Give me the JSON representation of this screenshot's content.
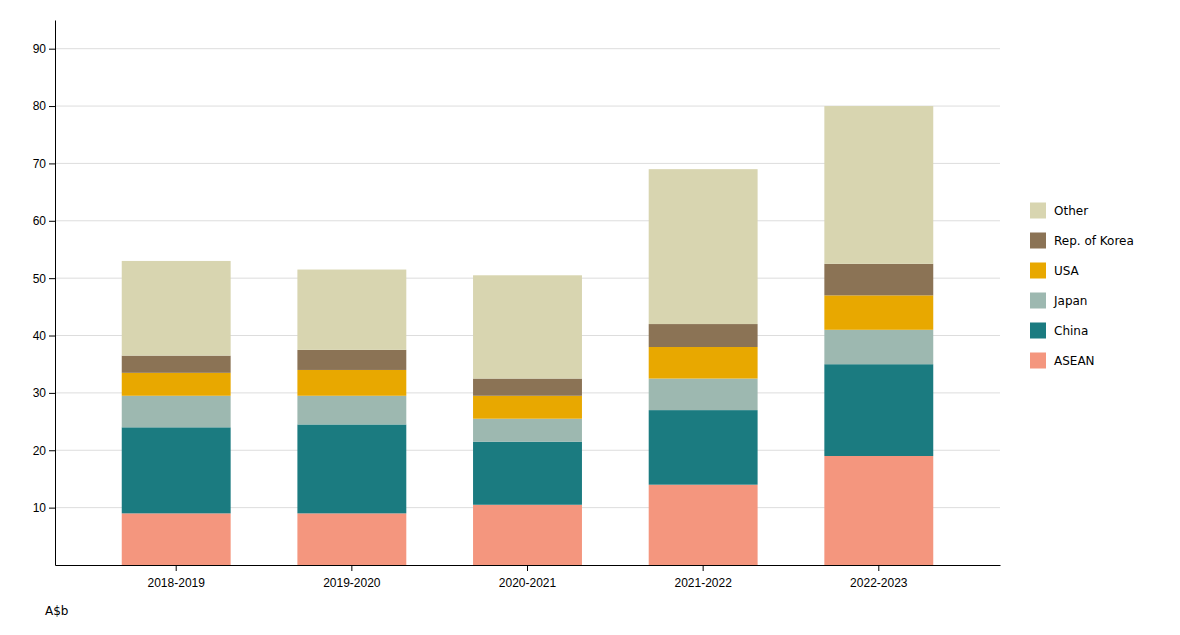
{
  "chart_data": {
    "type": "bar",
    "stacked": true,
    "categories": [
      "2018-2019",
      "2019-2020",
      "2020-2021",
      "2021-2022",
      "2022-2023"
    ],
    "series": [
      {
        "name": "ASEAN",
        "color": "#F4967E",
        "values": [
          9,
          9,
          10.5,
          14,
          19
        ]
      },
      {
        "name": "China",
        "color": "#1B7B80",
        "values": [
          15,
          15.5,
          11,
          13,
          16
        ]
      },
      {
        "name": "Japan",
        "color": "#9DB8B0",
        "values": [
          5.5,
          5,
          4,
          5.5,
          6
        ]
      },
      {
        "name": "USA",
        "color": "#E8A800",
        "values": [
          4,
          4.5,
          4,
          5.5,
          6
        ]
      },
      {
        "name": "Rep. of Korea",
        "color": "#8B7355",
        "values": [
          3,
          3.5,
          3,
          4,
          5.5
        ]
      },
      {
        "name": "Other",
        "color": "#D8D5B0",
        "values": [
          16.5,
          14,
          18,
          27,
          27.5
        ]
      }
    ],
    "y_label": "A$b",
    "ylim": [
      0,
      95
    ],
    "yticks": [
      10,
      20,
      30,
      40,
      50,
      60,
      70,
      80,
      90
    ],
    "grid": true,
    "legend": "right"
  }
}
